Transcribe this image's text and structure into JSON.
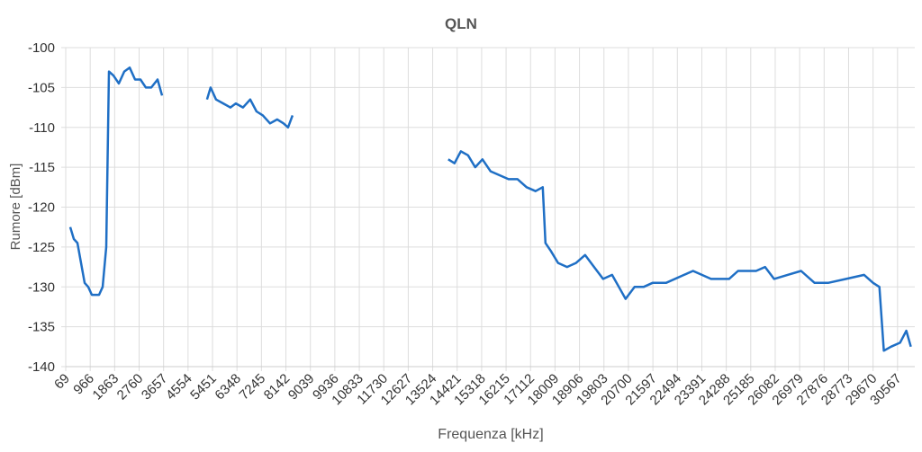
{
  "chart_data": {
    "type": "line",
    "title": "QLN",
    "x_label": "Frequenza [kHz]",
    "y_label": "Rumore [dBm]",
    "x": [
      234,
      366,
      498,
      630,
      762,
      894,
      1026,
      1158,
      1290,
      1422,
      1554,
      1653,
      1818,
      2016,
      2214,
      2412,
      2610,
      2808,
      3006,
      3204,
      3435,
      3600,
      4500,
      5250,
      5382,
      5580,
      5844,
      6108,
      6306,
      6570,
      6834,
      7065,
      7296,
      7560,
      7824,
      8055,
      8220,
      8385,
      11000,
      14094,
      14325,
      14556,
      14820,
      15084,
      15348,
      15645,
      15975,
      16305,
      16635,
      16965,
      17295,
      17559,
      17658,
      17856,
      18120,
      18450,
      18780,
      19110,
      19440,
      19770,
      20100,
      20430,
      20595,
      20925,
      21255,
      21585,
      22080,
      22740,
      23070,
      23730,
      24390,
      24720,
      25380,
      25710,
      26040,
      26535,
      27030,
      27525,
      28020,
      28680,
      29340,
      29670,
      29901,
      30066,
      30330,
      30660,
      30891,
      31056
    ],
    "values": [
      -122.5,
      -124,
      -124.5,
      -127,
      -129.5,
      -130,
      -131,
      -131,
      -131,
      -130,
      -125,
      -103,
      -103.5,
      -104.5,
      -103,
      -102.5,
      -104,
      -104,
      -105,
      -105,
      -104,
      -106,
      null,
      -106.5,
      -105,
      -106.5,
      -107,
      -107.5,
      -107,
      -107.5,
      -106.5,
      -108,
      -108.5,
      -109.5,
      -109,
      -109.5,
      -110,
      -108.5,
      null,
      -114,
      -114.5,
      -113,
      -113.5,
      -115,
      -114,
      -115.5,
      -116,
      -116.5,
      -116.5,
      -117.5,
      -118,
      -117.5,
      -124.5,
      -125.5,
      -127,
      -127.5,
      -127,
      -126,
      -127.5,
      -129,
      -128.5,
      -130.5,
      -131.5,
      -130,
      -130,
      -129.5,
      -129.5,
      -128.5,
      -128,
      -129,
      -129,
      -128,
      -128,
      -127.5,
      -129,
      -128.5,
      -128,
      -129.5,
      -129.5,
      -129,
      -128.5,
      -129.5,
      -130,
      -138,
      -137.5,
      -137,
      -135.5,
      -137.5
    ],
    "color": "#1f6fc5",
    "xlim": [
      69,
      31200
    ],
    "xticks": [
      69,
      966,
      1863,
      2760,
      3657,
      4554,
      5451,
      6348,
      7245,
      8142,
      9039,
      9936,
      10833,
      11730,
      12627,
      13524,
      14421,
      15318,
      16215,
      17112,
      18009,
      18906,
      19803,
      20700,
      21597,
      22494,
      23391,
      24288,
      25185,
      26082,
      26979,
      27876,
      28773,
      29670,
      30567
    ],
    "ylim": [
      -140,
      -100
    ],
    "yticks": [
      -100,
      -105,
      -110,
      -115,
      -120,
      -125,
      -130,
      -135,
      -140
    ],
    "grid": true
  }
}
